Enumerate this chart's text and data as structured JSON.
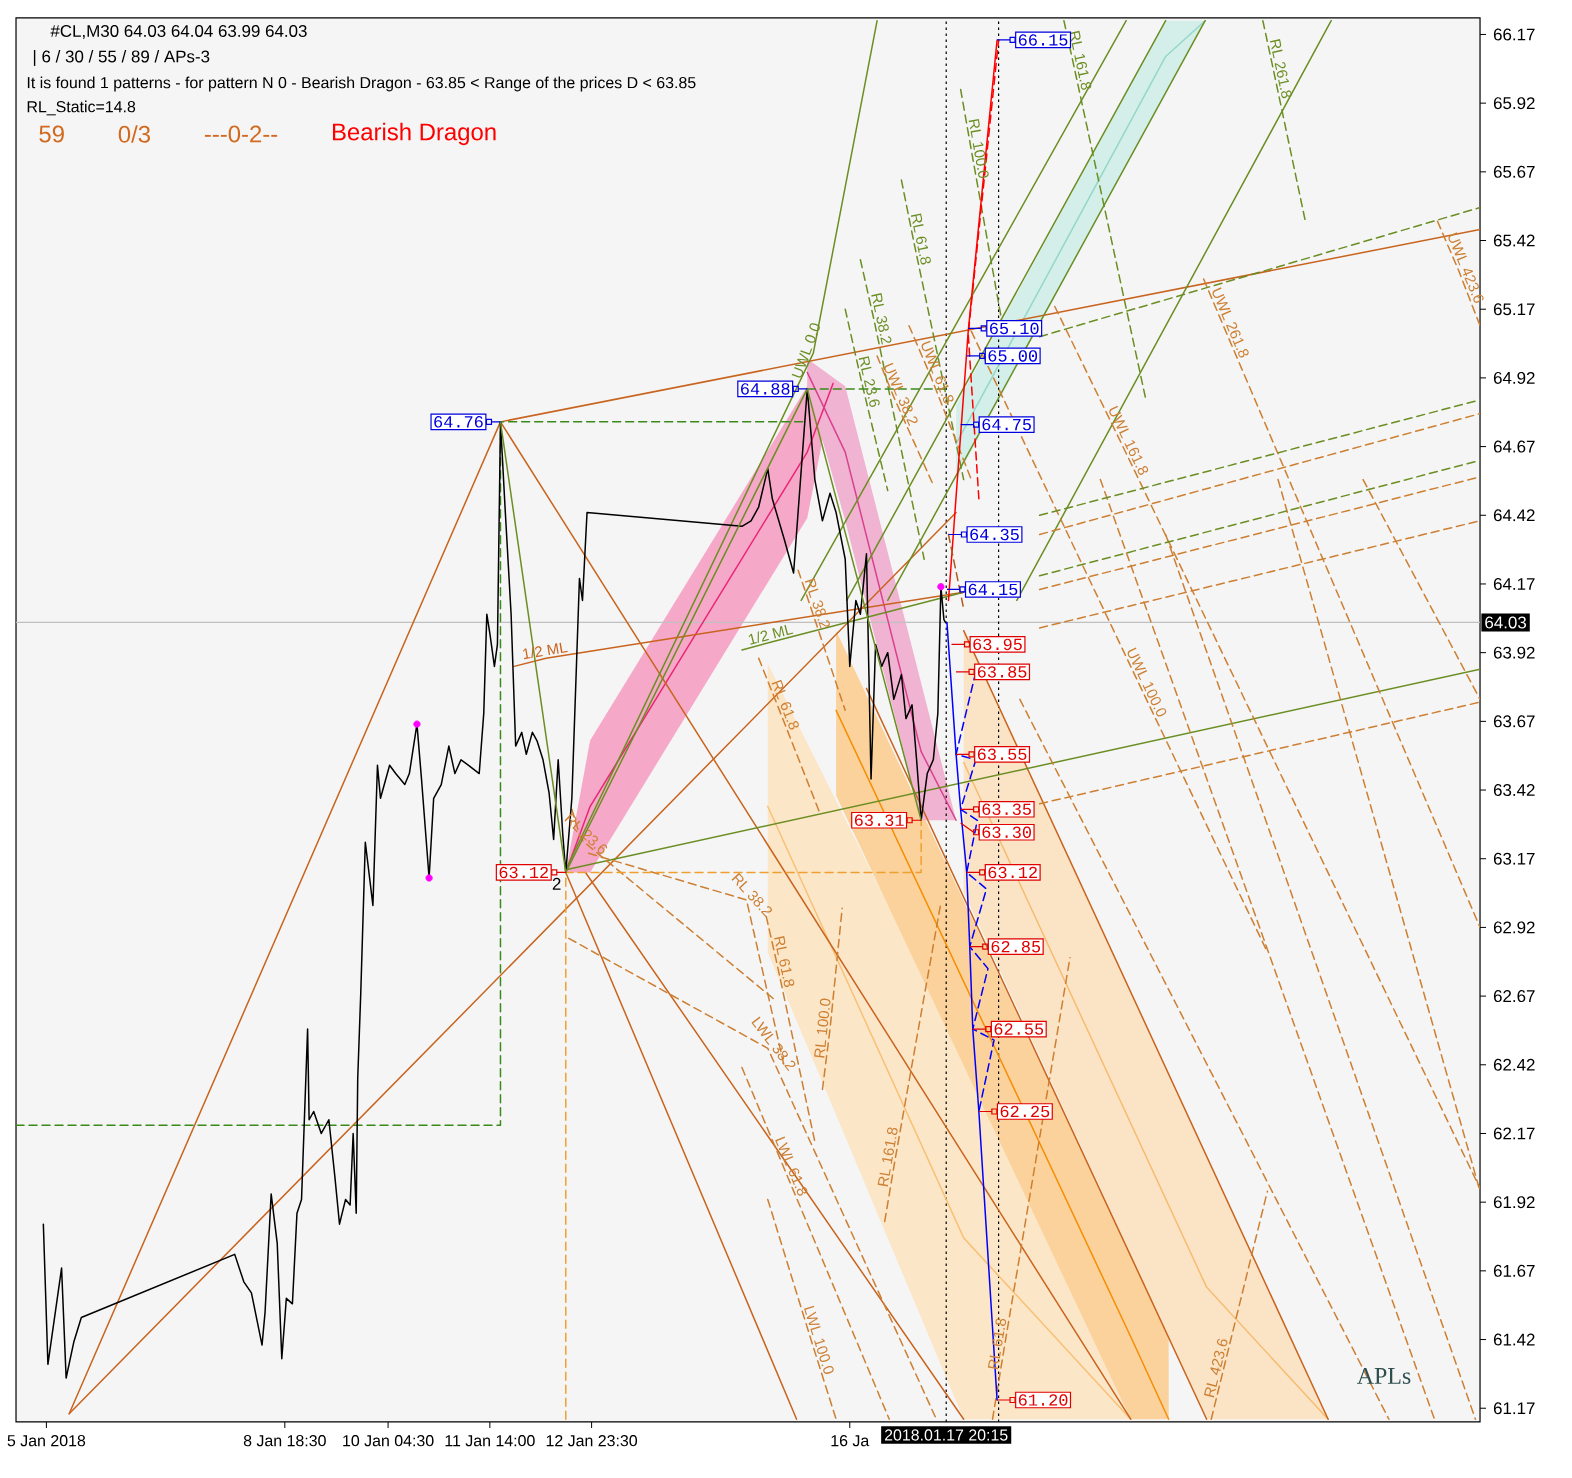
{
  "chart_data": {
    "type": "line",
    "title": "#CL,M30 64.03 64.04 63.99 64.03",
    "subtitle": "| 6 / 30 / 55 / 89 / APs-3",
    "xlim": [
      "2018-01-05T02:00",
      "2018-01-25T04:00"
    ],
    "ylim": [
      61.12,
      66.23
    ],
    "xticks": [
      {
        "value": "2018-01-05T12:00",
        "label": "5 Jan 2018"
      },
      {
        "value": "2018-01-08T18:30",
        "label": "8 Jan 18:30"
      },
      {
        "value": "2018-01-10T04:30",
        "label": "10 Jan 04:30"
      },
      {
        "value": "2018-01-11T14:00",
        "label": "11 Jan 14:00"
      },
      {
        "value": "2018-01-12T23:30",
        "label": "12 Jan 23:30"
      },
      {
        "value": "2018-01-16T12:30",
        "label": "16 Ja"
      }
    ],
    "yticks": [
      61.17,
      61.42,
      61.67,
      61.92,
      62.17,
      62.42,
      62.67,
      62.92,
      63.17,
      63.42,
      63.67,
      63.92,
      64.17,
      64.42,
      64.67,
      64.92,
      65.17,
      65.42,
      65.67,
      65.92,
      66.17
    ],
    "ref_lines": [
      {
        "axis": "y",
        "value": 64.03,
        "label": "64.03",
        "color": "#c0c0c0"
      },
      {
        "axis": "x",
        "value": "2018-01-17T20:15",
        "label": "2018.01.17 20:15",
        "color": "#000000",
        "line_style": "dotted"
      },
      {
        "axis": "x",
        "value": "2018-01-18T13:30",
        "color": "#000000",
        "line_style": "dotted"
      }
    ],
    "series": [
      {
        "color": "#f6bc70",
        "x": [
          "2018-01-18T02:00",
          "2018-01-21T10:00",
          "2018-01-23T02:00"
        ],
        "values": [
          63.52,
          61.61,
          61.13
        ],
        "lower": [
          63.05,
          61.13,
          61.13
        ],
        "upper": [
          64.0,
          62.09,
          61.13
        ]
      },
      {
        "color": "#f8c176",
        "x": [
          "2018-01-15T09:30",
          "2018-01-18T02:00",
          "2018-01-20T09:00"
        ],
        "values": [
          63.36,
          61.79,
          61.13
        ],
        "lower": [
          62.83,
          61.13,
          61.13
        ],
        "upper": [
          63.88,
          62.45,
          61.13
        ]
      },
      {
        "color": "#f58e05",
        "x": [
          "2018-01-16T08:00",
          "2018-01-20T09:00",
          "2018-01-20T21:30"
        ],
        "values": [
          63.71,
          61.43,
          61.13
        ],
        "lower": [
          63.4,
          61.13,
          61.13
        ],
        "upper": [
          64.0,
          61.73,
          61.43
        ]
      },
      {
        "color": "#94d7c8",
        "x": [
          "2018-01-17T23:30",
          "2018-01-20T20:30",
          "2018-01-21T09:30"
        ],
        "values": [
          64.68,
          66.09,
          66.22
        ],
        "lower": [
          64.55,
          65.96,
          66.22
        ],
        "upper": [
          64.82,
          66.22,
          66.22
        ]
      },
      {
        "color": "#e92676",
        "x": [
          "2018-01-12T15:00",
          "2018-01-12T23:00",
          "2018-01-15T22:30",
          "2018-01-16T07:00"
        ],
        "values": [
          63.12,
          63.36,
          64.65,
          64.9
        ],
        "lower": [
          63.12,
          63.12,
          64.41,
          64.89
        ],
        "upper": [
          63.12,
          63.6,
          64.89,
          64.91
        ]
      },
      {
        "color": "#d9408f",
        "x": [
          "2018-01-15T22:30",
          "2018-01-16T11:00",
          "2018-01-17T12:00",
          "2018-01-17T23:30"
        ],
        "values": [
          64.94,
          64.65,
          63.56,
          63.31
        ],
        "lower": [
          64.89,
          64.4,
          63.31,
          63.31
        ],
        "upper": [
          64.99,
          64.89,
          63.81,
          63.31
        ]
      },
      {
        "color": "#c8641e",
        "x": [
          "2018-01-05T19:30",
          "2018-01-11T17:30"
        ],
        "values": [
          61.15,
          64.76
        ]
      },
      {
        "color": "#c8641e",
        "x": [
          "2018-01-05T19:30",
          "2018-01-17T23:30"
        ],
        "values": [
          61.15,
          64.43
        ]
      },
      {
        "color": "#c8641e",
        "x": [
          "2018-01-11T17:30",
          "2018-01-25T04:00"
        ],
        "values": [
          64.76,
          65.46
        ]
      },
      {
        "color": "#c8641e",
        "x": [
          "2018-01-12T15:00",
          "2018-01-15T19:00"
        ],
        "values": [
          63.12,
          61.13
        ]
      },
      {
        "color": "#c8641e",
        "x": [
          "2018-01-12T21:30",
          "2018-01-18T02:00"
        ],
        "values": [
          63.12,
          61.13
        ]
      },
      {
        "color": "#c8641e",
        "x": [
          "2018-01-11T17:30",
          "2018-01-20T09:00"
        ],
        "values": [
          64.76,
          61.13
        ]
      },
      {
        "color": "#c8641e",
        "x": [
          "2018-01-16T18:00",
          "2018-01-21T10:00"
        ],
        "values": [
          63.79,
          61.13
        ]
      },
      {
        "color": "#c8641e",
        "x": [
          "2018-01-18T02:00",
          "2018-01-23T02:00"
        ],
        "values": [
          64.0,
          61.13
        ]
      },
      {
        "color": "#6b8e23",
        "x": [
          "2018-01-12T15:00",
          "2018-01-25T04:00"
        ],
        "values": [
          63.13,
          63.86
        ]
      },
      {
        "name": "UWL 0.0",
        "color": "#6b8e23",
        "x": [
          "2018-01-12T15:00",
          "2018-01-16T00:30",
          "2018-01-16T21:30"
        ],
        "values": [
          63.13,
          65.01,
          66.22
        ]
      },
      {
        "color": "#6b8e23",
        "x": [
          "2018-01-15T20:30",
          "2018-01-20T07:30"
        ],
        "values": [
          64.11,
          66.22
        ]
      },
      {
        "color": "#6b8e23",
        "x": [
          "2018-01-16T11:30",
          "2018-01-20T20:30"
        ],
        "values": [
          64.11,
          66.22
        ]
      },
      {
        "color": "#6b8e23",
        "x": [
          "2018-01-17T01:00",
          "2018-01-21T09:30"
        ],
        "values": [
          64.11,
          66.22
        ]
      },
      {
        "color": "#6b8e23",
        "x": [
          "2018-01-18T19:30",
          "2018-01-23T03:00"
        ],
        "values": [
          64.11,
          66.22
        ]
      },
      {
        "name": "RL 61.8",
        "color": "#6b8e23",
        "line_style": "dashed",
        "x": [
          "2018-01-17T05:30",
          "2018-01-17T09:30",
          "2018-01-18T02:00"
        ],
        "values": [
          65.64,
          65.42,
          64.55
        ]
      },
      {
        "name": "RL 38.2",
        "color": "#6b8e23",
        "line_style": "dashed",
        "x": [
          "2018-01-16T16:00",
          "2018-01-16T20:30",
          "2018-01-17T13:00"
        ],
        "values": [
          65.35,
          65.13,
          64.26
        ]
      },
      {
        "name": "RL 23.6",
        "color": "#6b8e23",
        "line_style": "dashed",
        "x": [
          "2018-01-16T11:00",
          "2018-01-16T16:30",
          "2018-01-17T01:00"
        ],
        "values": [
          65.17,
          64.9,
          64.51
        ]
      },
      {
        "name": "RL 100.0",
        "color": "#6b8e23",
        "line_style": "dashed",
        "x": [
          "2018-01-18T01:00",
          "2018-01-18T04:30",
          "2018-01-18T14:30"
        ],
        "values": [
          65.97,
          65.75,
          65.13
        ]
      },
      {
        "name": "RL 161.8",
        "color": "#6b8e23",
        "line_style": "dashed",
        "x": [
          "2018-01-19T11:00",
          "2018-01-19T14:00",
          "2018-01-20T14:00"
        ],
        "values": [
          66.22,
          66.07,
          64.84
        ]
      },
      {
        "name": "RL 261.8",
        "color": "#6b8e23",
        "line_style": "dashed",
        "x": [
          "2018-01-22T04:30",
          "2018-01-22T08:00",
          "2018-01-22T18:30"
        ],
        "values": [
          66.22,
          66.04,
          65.49
        ]
      },
      {
        "name": "UWL 161.8",
        "color": "#cd7f32",
        "line_style": "dashed",
        "x": [
          "2018-01-19T08:00",
          "2018-01-20T06:00",
          "2018-01-25T04:00"
        ],
        "values": [
          65.18,
          64.68,
          61.97
        ]
      },
      {
        "name": "UWL 261.8",
        "color": "#cd7f32",
        "line_style": "dashed",
        "x": [
          "2018-01-21T09:00",
          "2018-01-21T15:30",
          "2018-01-25T04:00"
        ],
        "values": [
          65.28,
          65.11,
          62.92
        ]
      },
      {
        "name": "UWL 423.6",
        "color": "#cd7f32",
        "line_style": "dashed",
        "x": [
          "2018-01-24T14:00",
          "2018-01-24T21:00",
          "2018-01-25T04:00"
        ],
        "values": [
          65.49,
          65.31,
          65.11
        ]
      },
      {
        "name": "UWL 100.0",
        "color": "#cd7f32",
        "line_style": "dashed",
        "x": [
          "2018-01-18T04:30",
          "2018-01-20T12:00",
          "2018-01-22T06:00"
        ],
        "values": [
          65.09,
          63.8,
          62.83
        ]
      },
      {
        "name": "UWL 61.8",
        "color": "#cd7f32",
        "line_style": "dashed",
        "x": [
          "2018-01-17T08:00",
          "2018-01-17T15:00",
          "2018-01-18T04:30"
        ],
        "values": [
          65.11,
          64.93,
          64.55
        ]
      },
      {
        "name": "UWL 38.2",
        "color": "#cd7f32",
        "line_style": "dashed",
        "x": [
          "2018-01-16T21:30",
          "2018-01-17T03:00",
          "2018-01-17T16:00"
        ],
        "values": [
          65.0,
          64.85,
          64.53
        ]
      },
      {
        "color": "#cd7f32",
        "line_style": "dashed",
        "x": [
          "2018-01-18T20:30",
          "2018-01-23T22:00"
        ],
        "values": [
          63.75,
          61.13
        ]
      },
      {
        "color": "#cd7f32",
        "line_style": "dashed",
        "x": [
          "2018-01-19T23:00",
          "2018-01-24T13:00"
        ],
        "values": [
          64.55,
          61.13
        ]
      },
      {
        "color": "#cd7f32",
        "line_style": "dashed",
        "x": [
          "2018-01-20T20:30",
          "2018-01-25T02:30"
        ],
        "values": [
          64.35,
          61.13
        ]
      },
      {
        "color": "#cd7f32",
        "line_style": "dashed",
        "x": [
          "2018-01-22T09:30",
          "2018-01-25T04:00"
        ],
        "values": [
          64.55,
          61.96
        ]
      },
      {
        "color": "#cd7f32",
        "line_style": "dashed",
        "x": [
          "2018-01-23T13:30",
          "2018-01-25T04:00"
        ],
        "values": [
          64.55,
          63.75
        ]
      },
      {
        "name": "LWL 38.2",
        "color": "#cd7f32",
        "line_style": "dashed",
        "x": [
          "2018-01-12T16:00",
          "2018-01-15T09:30",
          "2018-01-17T17:00"
        ],
        "values": [
          62.88,
          62.48,
          61.13
        ]
      },
      {
        "name": "LWL 61.8",
        "color": "#cd7f32",
        "line_style": "dashed",
        "x": [
          "2018-01-15T01:00",
          "2018-01-15T15:00",
          "2018-01-17T01:30"
        ],
        "values": [
          62.41,
          62.04,
          61.13
        ]
      },
      {
        "name": "LWL 100.0",
        "color": "#cd7f32",
        "line_style": "dashed",
        "x": [
          "2018-01-15T09:30",
          "2018-01-16T00:00",
          "2018-01-16T08:00"
        ],
        "values": [
          61.93,
          61.41,
          61.13
        ]
      },
      {
        "name": "RL 100.0",
        "color": "#cd7f32",
        "line_style": "dashed",
        "x": [
          "2018-01-16T03:30",
          "2018-01-16T06:00",
          "2018-01-16T10:00"
        ],
        "values": [
          62.33,
          62.55,
          62.99
        ]
      },
      {
        "name": "RL 161.8",
        "color": "#cd7f32",
        "line_style": "dashed",
        "x": [
          "2018-01-17T00:00",
          "2018-01-17T03:30",
          "2018-01-17T18:30"
        ],
        "values": [
          61.85,
          62.08,
          63.01
        ]
      },
      {
        "name": "RL 423.6",
        "color": "#cd7f32",
        "line_style": "dashed",
        "x": [
          "2018-01-21T11:30",
          "2018-01-21T15:30",
          "2018-01-22T06:00"
        ],
        "values": [
          61.13,
          61.31,
          61.96
        ]
      },
      {
        "name": "RL 61.8",
        "color": "#cd7f32",
        "line_style": "dashed",
        "x": [
          "2018-01-18T11:30",
          "2018-01-18T15:30",
          "2018-01-19T13:00"
        ],
        "values": [
          61.13,
          61.4,
          62.81
        ]
      },
      {
        "name": "RL 23.6",
        "color": "#cd7f32",
        "line_style": "dashed",
        "x": [
          "2018-01-12T17:00",
          "2018-01-12T20:00",
          "2018-01-15T12:30"
        ],
        "values": [
          63.35,
          63.24,
          62.65
        ]
      },
      {
        "name": "RL 38.2",
        "color": "#cd7f32",
        "line_style": "dashed",
        "x": [
          "2018-01-12T22:30",
          "2018-01-15T02:30",
          "2018-01-15T15:00"
        ],
        "values": [
          63.19,
          63.02,
          62.41
        ]
      },
      {
        "name": "RL 61.8",
        "color": "#cd7f32",
        "line_style": "dashed",
        "x": [
          "2018-01-15T09:00",
          "2018-01-15T12:30",
          "2018-01-16T01:00"
        ],
        "values": [
          62.96,
          62.79,
          62.14
        ]
      },
      {
        "name": "RL 61.8",
        "color": "#cd7f32",
        "line_style": "dashed",
        "x": [
          "2018-01-15T06:30",
          "2018-01-15T13:00",
          "2018-01-16T02:30"
        ],
        "values": [
          63.9,
          63.72,
          63.34
        ]
      },
      {
        "name": "RL 38.2",
        "color": "#cd7f32",
        "line_style": "dashed",
        "x": [
          "2018-01-15T19:30",
          "2018-01-15T23:30",
          "2018-01-16T11:00"
        ],
        "values": [
          64.22,
          64.09,
          63.71
        ]
      },
      {
        "name": "1/2 ML",
        "color": "#c8641e",
        "x": [
          "2018-01-11T22:00",
          "2018-01-12T08:30",
          "2018-01-18T02:00"
        ],
        "values": [
          63.87,
          63.9,
          64.14
        ]
      },
      {
        "name": "1/2 ML",
        "color": "#6b8e23",
        "x": [
          "2018-01-15T01:00",
          "2018-01-15T11:00",
          "2018-01-18T02:00"
        ],
        "values": [
          63.93,
          63.96,
          64.14
        ]
      },
      {
        "color": "#6b8e23",
        "line_style": "dashed",
        "x": [
          "2018-01-19T03:00",
          "2018-01-25T04:00"
        ],
        "values": [
          65.07,
          65.54
        ]
      },
      {
        "color": "#6b8e23",
        "line_style": "dashed",
        "x": [
          "2018-01-19T03:00",
          "2018-01-25T04:00"
        ],
        "values": [
          64.42,
          64.84
        ]
      },
      {
        "color": "#cd7f32",
        "line_style": "dashed",
        "x": [
          "2018-01-19T03:00",
          "2018-01-25T04:00"
        ],
        "values": [
          64.35,
          64.79
        ]
      },
      {
        "color": "#6b8e23",
        "line_style": "dashed",
        "x": [
          "2018-01-19T03:00",
          "2018-01-25T04:00"
        ],
        "values": [
          64.2,
          64.62
        ]
      },
      {
        "color": "#cd7f32",
        "line_style": "dashed",
        "x": [
          "2018-01-19T03:00",
          "2018-01-25T04:00"
        ],
        "values": [
          64.15,
          64.56
        ]
      },
      {
        "color": "#cd7f32",
        "line_style": "dashed",
        "x": [
          "2018-01-19T03:00",
          "2018-01-25T04:00"
        ],
        "values": [
          64.01,
          64.4
        ]
      },
      {
        "color": "#cd7f32",
        "line_style": "dashed",
        "x": [
          "2018-01-19T03:00",
          "2018-01-25T04:00"
        ],
        "values": [
          63.37,
          63.74
        ]
      },
      {
        "color": "#3a8a1a",
        "line_style": "dashed",
        "x": [
          "2018-01-05T02:00",
          "2018-01-11T17:30",
          "2018-01-11T17:30",
          "2018-01-15T22:30"
        ],
        "values": [
          62.2,
          62.2,
          64.76,
          64.76
        ]
      },
      {
        "color": "#3a8a1a",
        "line_style": "dashed",
        "x": [
          "2018-01-15T22:30",
          "2018-01-17T21:00"
        ],
        "values": [
          64.88,
          64.88
        ]
      },
      {
        "color": "#f0a030",
        "line_style": "dashed",
        "x": [
          "2018-01-12T15:00",
          "2018-01-12T15:00",
          "2018-01-17T12:00",
          "2018-01-17T12:00"
        ],
        "values": [
          61.13,
          63.12,
          63.12,
          63.31
        ]
      },
      {
        "color": "#000000",
        "x": [
          "2018-01-05T11:00",
          "2018-01-05T12:30",
          "2018-01-05T17:00",
          "2018-01-05T18:30",
          "2018-01-05T21:00",
          "2018-01-05T23:30",
          "2018-01-08T02:00",
          "2018-01-08T05:00",
          "2018-01-08T07:30",
          "2018-01-08T11:00",
          "2018-01-08T12:00",
          "2018-01-08T14:00",
          "2018-01-08T16:00",
          "2018-01-08T17:30",
          "2018-01-08T19:00",
          "2018-01-08T21:00",
          "2018-01-08T22:30",
          "2018-01-09T00:00",
          "2018-01-09T02:00",
          "2018-01-09T02:30",
          "2018-01-09T04:00",
          "2018-01-09T06:30",
          "2018-01-09T09:00",
          "2018-01-09T11:00",
          "2018-01-09T12:30",
          "2018-01-09T14:30",
          "2018-01-09T16:00",
          "2018-01-09T17:00",
          "2018-01-09T18:00",
          "2018-01-09T18:30",
          "2018-01-09T19:30",
          "2018-01-09T21:00",
          "2018-01-09T23:30",
          "2018-01-10T01:00",
          "2018-01-10T02:00",
          "2018-01-10T05:00",
          "2018-01-10T07:00",
          "2018-01-10T10:00",
          "2018-01-10T11:30",
          "2018-01-10T14:00",
          "2018-01-10T15:30",
          "2018-01-10T18:00",
          "2018-01-10T19:30",
          "2018-01-10T22:00",
          "2018-01-11T00:30",
          "2018-01-11T02:30",
          "2018-01-11T04:30",
          "2018-01-11T07:00",
          "2018-01-11T10:30",
          "2018-01-11T12:00",
          "2018-01-11T13:00",
          "2018-01-11T14:00",
          "2018-01-11T15:30",
          "2018-01-11T16:30",
          "2018-01-11T17:30",
          "2018-01-11T19:00",
          "2018-01-11T21:00",
          "2018-01-11T22:30",
          "2018-01-12T00:30",
          "2018-01-12T02:00",
          "2018-01-12T04:00",
          "2018-01-12T05:30",
          "2018-01-12T07:30",
          "2018-01-12T09:30",
          "2018-01-12T11:00",
          "2018-01-12T12:30",
          "2018-01-12T14:00",
          "2018-01-12T15:00",
          "2018-01-12T17:00",
          "2018-01-12T19:30",
          "2018-01-12T20:30",
          "2018-01-12T22:00",
          "2018-01-15T01:00",
          "2018-01-15T04:00",
          "2018-01-15T06:30",
          "2018-01-15T09:30",
          "2018-01-15T11:00",
          "2018-01-15T15:00",
          "2018-01-15T18:00",
          "2018-01-15T22:30",
          "2018-01-16T01:00",
          "2018-01-16T03:30",
          "2018-01-16T06:00",
          "2018-01-16T08:00",
          "2018-01-16T11:00",
          "2018-01-16T12:30",
          "2018-01-16T14:30",
          "2018-01-16T16:00",
          "2018-01-16T18:00",
          "2018-01-16T19:30",
          "2018-01-16T21:00",
          "2018-01-16T23:00",
          "2018-01-17T01:00",
          "2018-01-17T03:00",
          "2018-01-17T05:30",
          "2018-01-17T07:00",
          "2018-01-17T09:00",
          "2018-01-17T10:30",
          "2018-01-17T12:00",
          "2018-01-17T14:00",
          "2018-01-17T16:00",
          "2018-01-17T17:30",
          "2018-01-17T18:30",
          "2018-01-17T19:30",
          "2018-01-17T20:00"
        ],
        "values": [
          61.84,
          61.33,
          61.68,
          61.28,
          61.41,
          61.5,
          61.73,
          61.63,
          61.59,
          61.4,
          61.52,
          61.95,
          61.77,
          61.35,
          61.57,
          61.55,
          61.88,
          61.93,
          62.55,
          62.22,
          62.25,
          62.17,
          62.22,
          62.01,
          61.84,
          61.93,
          61.91,
          62.17,
          61.88,
          62.37,
          62.68,
          63.23,
          63.0,
          63.51,
          63.39,
          63.51,
          63.48,
          63.44,
          63.48,
          63.66,
          63.46,
          63.1,
          63.39,
          63.44,
          63.58,
          63.48,
          63.53,
          63.51,
          63.48,
          63.7,
          64.06,
          63.99,
          63.87,
          63.95,
          64.76,
          64.45,
          64.06,
          63.58,
          63.63,
          63.55,
          63.63,
          63.6,
          63.53,
          63.41,
          63.24,
          63.53,
          63.26,
          63.12,
          63.39,
          64.19,
          64.11,
          64.43,
          64.38,
          64.4,
          64.45,
          64.59,
          64.48,
          64.33,
          64.21,
          64.88,
          64.55,
          64.4,
          64.5,
          64.43,
          64.26,
          63.87,
          64.11,
          64.06,
          64.28,
          63.46,
          63.95,
          63.87,
          63.92,
          63.75,
          63.84,
          63.68,
          63.73,
          63.53,
          63.31,
          63.48,
          63.53,
          63.7,
          64.16,
          64.04,
          64.03
        ]
      },
      {
        "color": "#6b8e23",
        "x": [
          "2018-01-11T17:30",
          "2018-01-12T15:00",
          "2018-01-15T22:30",
          "2018-01-17T12:00"
        ],
        "values": [
          64.76,
          63.12,
          64.88,
          63.31
        ]
      },
      {
        "color": "#ff0000",
        "x": [
          "2018-01-17T21:00",
          "2018-01-18T03:30",
          "2018-01-18T13:00"
        ],
        "values": [
          64.11,
          65.09,
          66.15
        ]
      },
      {
        "color": "#ff0000",
        "line_style": "dashed",
        "x": [
          "2018-01-18T07:00",
          "2018-01-18T03:30",
          "2018-01-18T13:30"
        ],
        "values": [
          64.48,
          65.08,
          66.15
        ]
      },
      {
        "color": "#b05a1e",
        "line_style": "dashed",
        "x": [
          "2018-01-17T21:00",
          "2018-01-18T02:00"
        ],
        "values": [
          64.35,
          64.08
        ]
      },
      {
        "color": "#0000ff",
        "x": [
          "2018-01-17T20:30",
          "2018-01-17T23:30",
          "2018-01-18T01:00",
          "2018-01-18T03:00",
          "2018-01-18T04:00",
          "2018-01-18T05:00",
          "2018-01-18T07:00",
          "2018-01-18T13:00"
        ],
        "values": [
          64.03,
          63.55,
          63.35,
          63.12,
          62.85,
          62.55,
          62.25,
          61.2
        ]
      },
      {
        "color": "#0000ff",
        "line_style": "dashed",
        "x": [
          "2018-01-18T06:00",
          "2018-01-17T23:30",
          "2018-01-18T06:00",
          "2018-01-18T01:00",
          "2018-01-18T06:30",
          "2018-01-18T03:00",
          "2018-01-18T09:30",
          "2018-01-18T04:00",
          "2018-01-18T10:00",
          "2018-01-18T05:00",
          "2018-01-18T12:00",
          "2018-01-18T07:00"
        ],
        "values": [
          63.85,
          63.55,
          63.53,
          63.35,
          63.31,
          63.12,
          63.06,
          62.85,
          62.77,
          62.55,
          62.51,
          62.25
        ]
      },
      {
        "type": "scatter",
        "color": "#ff00ff",
        "marker": "circle",
        "x": [
          "2018-01-10T14:00",
          "2018-01-10T18:00",
          "2018-01-17T18:30"
        ],
        "values": [
          63.66,
          63.1,
          64.16
        ]
      }
    ],
    "annotations": [
      "It is found 1 patterns - for pattern N 0 - Bearish Dragon - 63.85 < Range of the prices D < 63.85",
      "RL_Static=14.8",
      "59",
      "0/3",
      "---0-2--",
      "Bearish Dragon",
      "APLs",
      {
        "text": "64.76",
        "x": "2018-01-11T17:30",
        "y": 64.76
      },
      {
        "text": "64.88",
        "x": "2018-01-15T22:30",
        "y": 64.88
      },
      {
        "text": "63.12",
        "x": "2018-01-12T15:00",
        "y": 63.12
      },
      {
        "text": "63.31",
        "x": "2018-01-17T12:00",
        "y": 63.31
      },
      {
        "text": "2",
        "x": "2018-01-12T15:00",
        "y": 63.12
      },
      {
        "text": "66.15",
        "x": "2018-01-18T13:00",
        "y": 66.15
      },
      {
        "text": "65.10",
        "x": "2018-01-18T03:30",
        "y": 65.1
      },
      {
        "text": "65.00",
        "x": "2018-01-18T03:00",
        "y": 65.0
      },
      {
        "text": "64.75",
        "x": "2018-01-18T01:00",
        "y": 64.75
      },
      {
        "text": "64.35",
        "x": "2018-01-17T21:00",
        "y": 64.35
      },
      {
        "text": "64.15",
        "x": "2018-01-17T20:30",
        "y": 64.15
      },
      {
        "text": "63.95",
        "x": "2018-01-17T22:00",
        "y": 63.95
      },
      {
        "text": "63.85",
        "x": "2018-01-17T23:30",
        "y": 63.85
      },
      {
        "text": "63.55",
        "x": "2018-01-17T23:30",
        "y": 63.55
      },
      {
        "text": "63.35",
        "x": "2018-01-18T01:00",
        "y": 63.35
      },
      {
        "text": "63.30",
        "x": "2018-01-18T01:00",
        "y": 63.3
      },
      {
        "text": "63.12",
        "x": "2018-01-18T03:00",
        "y": 63.12
      },
      {
        "text": "62.85",
        "x": "2018-01-18T04:00",
        "y": 62.85
      },
      {
        "text": "62.55",
        "x": "2018-01-18T05:00",
        "y": 62.55
      },
      {
        "text": "62.25",
        "x": "2018-01-18T07:00",
        "y": 62.25
      },
      {
        "text": "61.20",
        "x": "2018-01-18T13:00",
        "y": 61.2
      }
    ]
  }
}
